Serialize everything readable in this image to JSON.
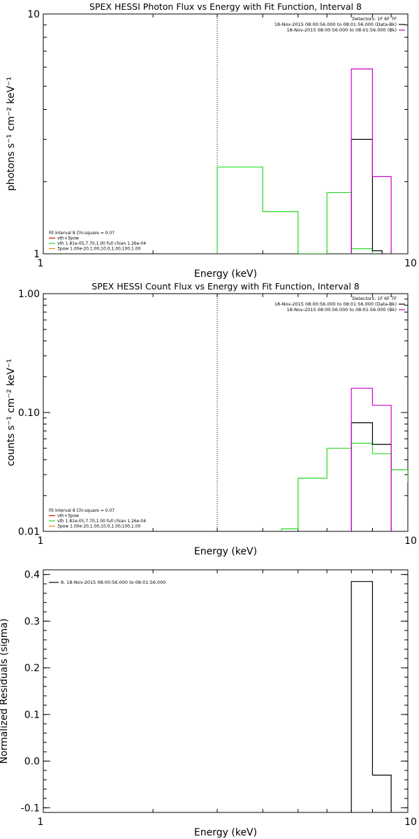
{
  "colors": {
    "black": "#000000",
    "magenta": "#cc00cc",
    "green": "#22dd22",
    "red": "#dd0000",
    "orange": "#ee8800"
  },
  "chart_data": [
    {
      "type": "line",
      "title": "SPEX HESSI Photon Flux vs Energy with Fit Function, Interval 8",
      "xlabel": "Energy (keV)",
      "ylabel": "photons s⁻¹ cm⁻² keV⁻¹",
      "xscale": "log",
      "yscale": "log",
      "xlim": [
        1,
        10
      ],
      "ylim": [
        1,
        10
      ],
      "xticks": [
        {
          "value": 1,
          "label": "1"
        },
        {
          "value": 10,
          "label": "10"
        }
      ],
      "yticks": [
        {
          "value": 1,
          "label": "1"
        },
        {
          "value": 10,
          "label": "10"
        }
      ],
      "vline_x": 3.0,
      "header": [
        "Detectors: 1F 6F 7F",
        "18-Nov-2015 08:00:56.000 to 08:01:56.000 (Data-Bk)",
        "18-Nov-2015 08:00:56.000 to 08:01:56.000 (Bk)"
      ],
      "fit_text": [
        "Fit Interval  8    Chi-square = 0.07",
        "vth+3pow",
        "vth  1.81e-05,7.70,1.00   full chian 1.26e-04",
        "3pow  1.00e-20,1.00,10.0,1.00,100,1.00"
      ],
      "series": [
        {
          "name": "vth",
          "color": "green",
          "edges": [
            3.0,
            4.0,
            5.0,
            6.0,
            7.0,
            8.0
          ],
          "values": [
            2.3,
            1.5,
            1.0,
            1.8,
            1.05
          ]
        },
        {
          "name": "data",
          "color": "black",
          "edges": [
            7.0,
            8.0,
            8.5
          ],
          "values": [
            3.0,
            1.03
          ]
        },
        {
          "name": "Bk",
          "color": "magenta",
          "edges": [
            7.0,
            8.0,
            9.0
          ],
          "values": [
            5.9,
            2.1
          ]
        }
      ]
    },
    {
      "type": "line",
      "title": "SPEX HESSI Count Flux vs Energy with Fit Function, Interval 8",
      "xlabel": "Energy (keV)",
      "ylabel": "counts s⁻¹ cm⁻² keV⁻¹",
      "xscale": "log",
      "yscale": "log",
      "xlim": [
        1,
        10
      ],
      "ylim": [
        0.01,
        1.0
      ],
      "xticks": [
        {
          "value": 1,
          "label": "1"
        },
        {
          "value": 10,
          "label": "10"
        }
      ],
      "yticks": [
        {
          "value": 0.01,
          "label": "0.01"
        },
        {
          "value": 0.1,
          "label": "0.10"
        },
        {
          "value": 1.0,
          "label": "1.00"
        }
      ],
      "vline_x": 3.0,
      "header": [
        "Detectors: 1F 6F 7F",
        "18-Nov-2015 08:00:56.000 to 08:01:56.000 (Data-Bk)",
        "18-Nov-2015 08:00:56.000 to 08:01:56.000 (Bk)"
      ],
      "fit_text": [
        "Fit Interval  8    Chi-square = 0.07",
        "vth+3pow",
        "vth  1.81e-05,7.70,1.00   full chian 1.26e-04",
        "3pow  1.00e-20,1.00,10.0,1.00,100,1.00"
      ],
      "series": [
        {
          "name": "vth",
          "color": "green",
          "edges": [
            4.5,
            5.0,
            6.0,
            7.0,
            8.0,
            9.0,
            10.0
          ],
          "values": [
            0.0105,
            0.028,
            0.05,
            0.055,
            0.045,
            0.033
          ],
          "tail_to": 0.026
        },
        {
          "name": "data",
          "color": "black",
          "edges": [
            7.0,
            8.0,
            9.0
          ],
          "values": [
            0.082,
            0.054
          ]
        },
        {
          "name": "Bk",
          "color": "magenta",
          "edges": [
            7.0,
            8.0,
            9.0
          ],
          "values": [
            0.16,
            0.115
          ]
        }
      ]
    },
    {
      "type": "line",
      "title": "",
      "xlabel": "Energy (keV)",
      "ylabel": "Normalized Residuals (sigma)",
      "xscale": "log",
      "yscale": "linear",
      "xlim": [
        1,
        10
      ],
      "ylim": [
        -0.11,
        0.41
      ],
      "xticks": [
        {
          "value": 1,
          "label": "1"
        },
        {
          "value": 10,
          "label": "10"
        }
      ],
      "yticks": [
        {
          "value": -0.1,
          "label": "-0.1"
        },
        {
          "value": 0.0,
          "label": "0.0"
        },
        {
          "value": 0.1,
          "label": "0.1"
        },
        {
          "value": 0.2,
          "label": "0.2"
        },
        {
          "value": 0.3,
          "label": "0.3"
        },
        {
          "value": 0.4,
          "label": "0.4"
        }
      ],
      "legend": [
        "8. 18-Nov-2015 08:00:56.000 to 08:01:56.000"
      ],
      "series": [
        {
          "name": "residual",
          "color": "black",
          "edges": [
            7.0,
            8.0,
            9.0
          ],
          "values": [
            0.385,
            -0.03
          ],
          "tail_to": -0.11
        }
      ]
    }
  ]
}
